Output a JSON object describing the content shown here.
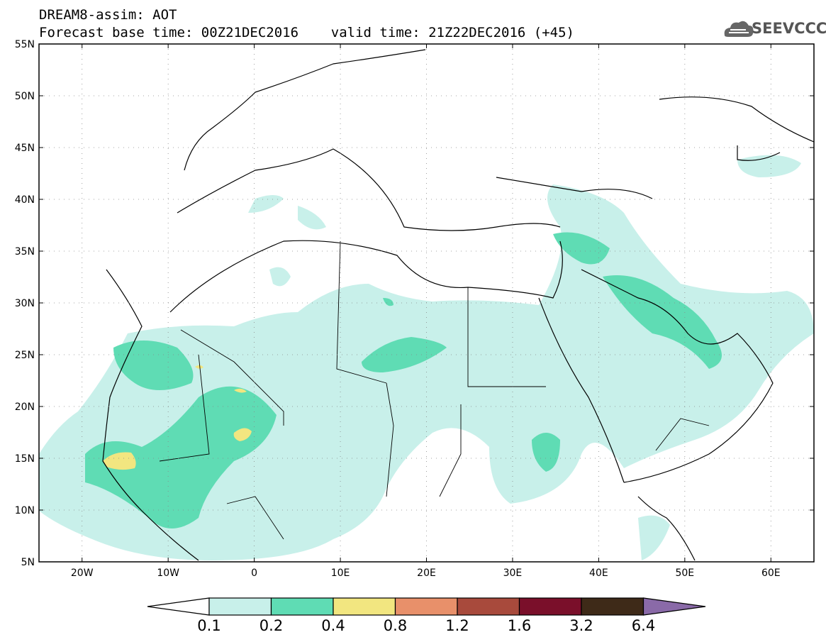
{
  "title": {
    "line1": "DREAM8-assim: AOT",
    "line2": "Forecast base time: 00Z21DEC2016    valid time: 21Z22DEC2016 (+45)"
  },
  "logo": {
    "text": "SEEVCCC",
    "icon": "cloud-icon"
  },
  "map": {
    "lon_range": [
      -25,
      65
    ],
    "lat_range": [
      5,
      55
    ],
    "grid": "dotted",
    "x_ticks": [
      "20W",
      "10W",
      "0",
      "10E",
      "20E",
      "30E",
      "40E",
      "50E",
      "60E"
    ],
    "y_ticks": [
      "5N",
      "10N",
      "15N",
      "20N",
      "25N",
      "30N",
      "35N",
      "40N",
      "45N",
      "50N",
      "55N"
    ],
    "colors": {
      "0.1": "#c8f0ea",
      "0.2": "#5fdcb4",
      "0.4": "#f2e680",
      "coast": "#000000"
    }
  },
  "colorbar": {
    "labels": [
      "0.1",
      "0.2",
      "0.4",
      "0.8",
      "1.2",
      "1.6",
      "3.2",
      "6.4"
    ],
    "colors": [
      "#ffffff",
      "#c8f0ea",
      "#5fdcb4",
      "#f2e680",
      "#e8906a",
      "#a84a3c",
      "#7a0f2a",
      "#3e2a18",
      "#8a6aa8"
    ]
  }
}
